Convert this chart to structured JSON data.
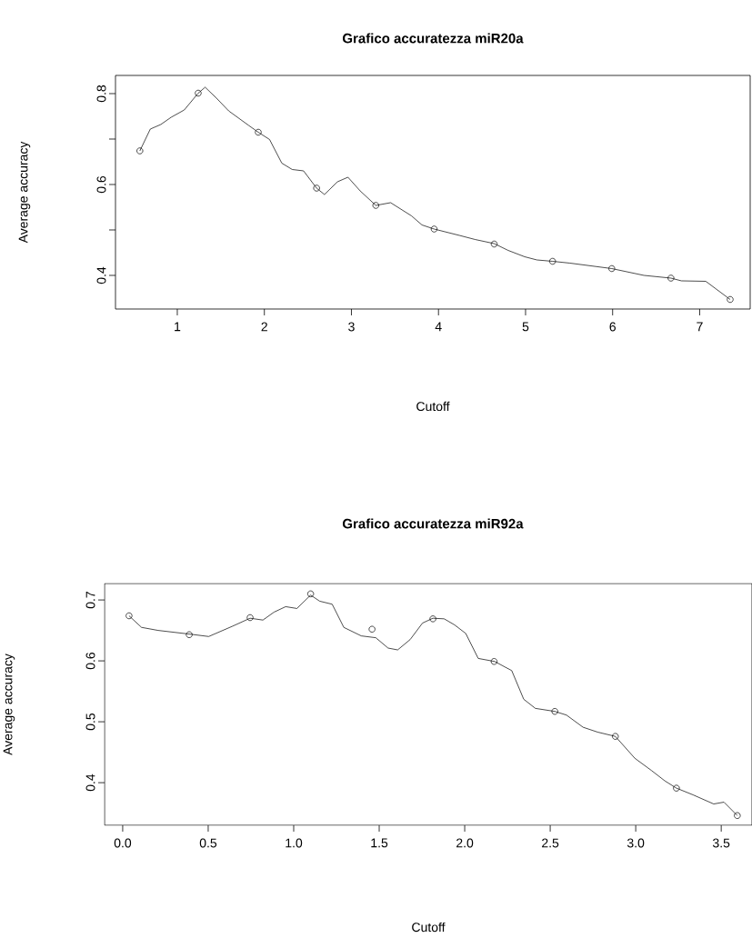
{
  "chart_data": [
    {
      "type": "line",
      "title": "Grafico accuratezza miR20a",
      "xlabel": "Cutoff",
      "ylabel": "Average accuracy",
      "xlim": [
        0.29,
        7.58
      ],
      "ylim": [
        0.326,
        0.84
      ],
      "xticks": [
        1,
        2,
        3,
        4,
        5,
        6,
        7
      ],
      "yticks": [
        0.4,
        {
          "value": 0.5,
          "label": null
        },
        0.6,
        {
          "value": 0.7,
          "label": null
        },
        0.8
      ],
      "series": [
        {
          "type": "line",
          "color": "#000000",
          "marker": "none",
          "line_style": "solid",
          "x": [
            0.57,
            0.69,
            0.81,
            0.93,
            1.08,
            1.24,
            1.32,
            1.45,
            1.59,
            1.82,
            1.93,
            2.06,
            2.2,
            2.32,
            2.45,
            2.6,
            2.69,
            2.84,
            2.96,
            3.1,
            3.28,
            3.45,
            3.69,
            3.81,
            3.95,
            4.24,
            4.42,
            4.64,
            4.8,
            4.99,
            5.13,
            5.31,
            5.51,
            5.99,
            6.36,
            6.67,
            6.79,
            7.07,
            7.35
          ],
          "values": [
            0.674,
            0.722,
            0.732,
            0.748,
            0.764,
            0.801,
            0.814,
            0.79,
            0.762,
            0.73,
            0.715,
            0.699,
            0.647,
            0.633,
            0.63,
            0.592,
            0.578,
            0.606,
            0.616,
            0.586,
            0.554,
            0.56,
            0.531,
            0.511,
            0.502,
            0.488,
            0.479,
            0.47,
            0.455,
            0.441,
            0.434,
            0.431,
            0.427,
            0.415,
            0.4,
            0.394,
            0.388,
            0.387,
            0.347
          ]
        },
        {
          "type": "scatter",
          "color": "#000000",
          "marker": "circle",
          "x": [
            0.57,
            1.24,
            1.93,
            2.6,
            3.28,
            3.95,
            4.64,
            5.31,
            5.99,
            6.67,
            7.35
          ],
          "values": [
            0.674,
            0.801,
            0.715,
            0.592,
            0.554,
            0.502,
            0.469,
            0.431,
            0.415,
            0.394,
            0.347
          ]
        }
      ]
    },
    {
      "type": "line",
      "title": "Grafico accuratezza miR92a",
      "xlabel": "Cutoff",
      "ylabel": "Average accuracy",
      "xlim": [
        -0.106,
        3.68
      ],
      "ylim": [
        0.33,
        0.727
      ],
      "xticks": [
        {
          "value": 0,
          "label": "0.0"
        },
        0.5,
        {
          "value": 1,
          "label": "1.0"
        },
        1.5,
        {
          "value": 2,
          "label": "2.0"
        },
        2.5,
        {
          "value": 3,
          "label": "3.0"
        },
        3.5
      ],
      "yticks": [
        0.4,
        0.5,
        0.6,
        0.7
      ],
      "series": [
        {
          "type": "line",
          "color": "#000000",
          "marker": "none",
          "line_style": "solid",
          "x": [
            0.037,
            0.11,
            0.207,
            0.389,
            0.503,
            0.643,
            0.745,
            0.82,
            0.885,
            0.953,
            1.019,
            1.099,
            1.152,
            1.225,
            1.293,
            1.395,
            1.48,
            1.552,
            1.608,
            1.681,
            1.753,
            1.814,
            1.88,
            1.941,
            2.006,
            2.079,
            2.175,
            2.275,
            2.345,
            2.413,
            2.527,
            2.595,
            2.692,
            2.777,
            2.881,
            2.995,
            3.092,
            3.17,
            3.238,
            3.335,
            3.456,
            3.516,
            3.594
          ],
          "values": [
            0.674,
            0.655,
            0.65,
            0.644,
            0.64,
            0.657,
            0.67,
            0.667,
            0.68,
            0.689,
            0.686,
            0.708,
            0.698,
            0.693,
            0.655,
            0.641,
            0.638,
            0.621,
            0.618,
            0.635,
            0.662,
            0.67,
            0.669,
            0.659,
            0.645,
            0.604,
            0.599,
            0.584,
            0.537,
            0.522,
            0.517,
            0.511,
            0.491,
            0.483,
            0.476,
            0.44,
            0.42,
            0.403,
            0.391,
            0.38,
            0.365,
            0.368,
            0.346
          ]
        },
        {
          "type": "scatter",
          "color": "#000000",
          "marker": "circle",
          "x": [
            0.037,
            0.389,
            0.745,
            1.099,
            1.458,
            1.814,
            2.172,
            2.527,
            2.881,
            3.238,
            3.594
          ],
          "values": [
            0.674,
            0.643,
            0.671,
            0.71,
            0.652,
            0.669,
            0.599,
            0.517,
            0.476,
            0.391,
            0.346
          ]
        }
      ]
    }
  ]
}
